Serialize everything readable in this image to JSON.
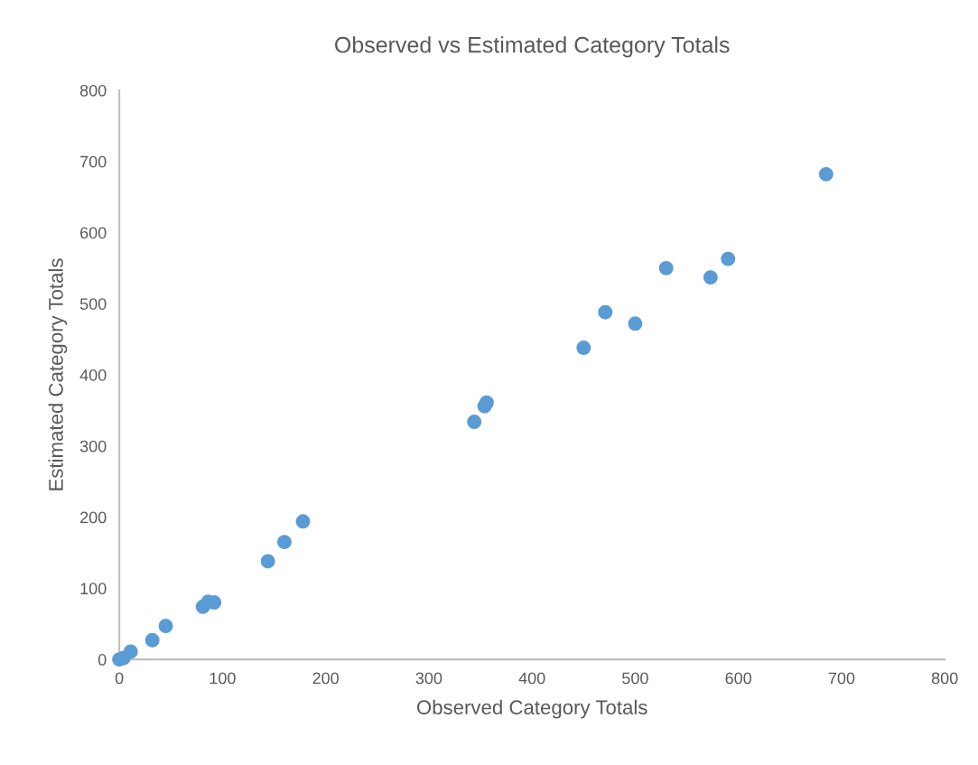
{
  "chart_data": {
    "type": "scatter",
    "title": "Observed vs Estimated Category Totals",
    "xlabel": "Observed Category Totals",
    "ylabel": "Estimated Category Totals",
    "x": [
      0,
      4,
      11,
      32,
      45,
      81,
      86,
      92,
      144,
      160,
      178,
      344,
      354,
      356,
      450,
      471,
      500,
      530,
      573,
      590,
      685
    ],
    "series": [
      {
        "color": "#5b9bd5",
        "values": [
          0,
          2,
          11,
          27,
          47,
          74,
          81,
          80,
          138,
          165,
          194,
          334,
          356,
          361,
          438,
          488,
          472,
          550,
          537,
          563,
          682
        ]
      }
    ],
    "xlim": [
      0,
      800
    ],
    "ylim": [
      0,
      800
    ],
    "xticks": [
      0,
      100,
      200,
      300,
      400,
      500,
      600,
      700,
      800
    ],
    "yticks": [
      0,
      100,
      200,
      300,
      400,
      500,
      600,
      700,
      800
    ],
    "marker": "circle",
    "grid": false,
    "legend": false
  }
}
